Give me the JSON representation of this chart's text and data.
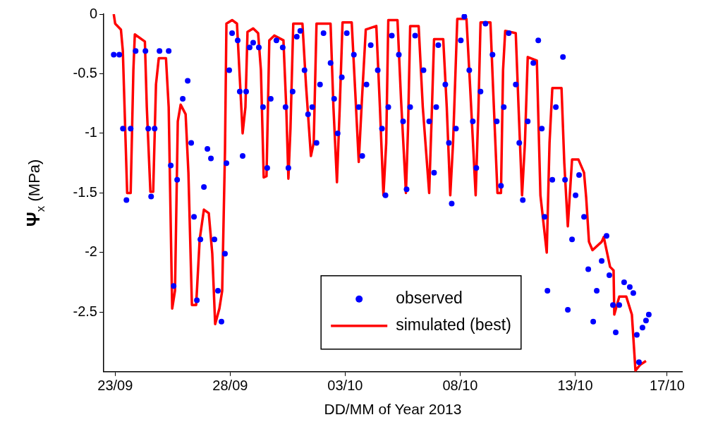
{
  "chart_data": {
    "type": "scatter",
    "xlabel": "DD/MM of Year 2013",
    "ylabel": "Ψ$_{x}$ (MPa)",
    "xlim": [
      "2013-09-22T12:00",
      "2013-10-17T15:30"
    ],
    "xticks": [
      {
        "value": "2013-09-23",
        "label": "23/09"
      },
      {
        "value": "2013-09-28",
        "label": "28/09"
      },
      {
        "value": "2013-10-03",
        "label": "03/10"
      },
      {
        "value": "2013-10-08",
        "label": "08/10"
      },
      {
        "value": "2013-10-13",
        "label": "13/10"
      },
      {
        "value": "2013-10-17",
        "label": "17/10"
      }
    ],
    "ylim": [
      -3,
      0
    ],
    "yticks": [
      0,
      -0.5,
      -1,
      -1.5,
      -2,
      -2.5
    ],
    "grid": false,
    "legend": "bottom",
    "series": [
      {
        "name": "observed",
        "marker": "circle",
        "color": "#0000ff",
        "x": [
          "2013-09-22T22:30",
          "2013-09-23T04:20",
          "2013-09-23T08:05",
          "2013-09-23T11:45",
          "2013-09-23T16:10",
          "2013-09-23T21:20",
          "2013-09-24T07:35",
          "2013-09-24T10:30",
          "2013-09-24T13:30",
          "2013-09-24T17:10",
          "2013-09-24T22:15",
          "2013-09-25T07:50",
          "2013-09-25T10:00",
          "2013-09-25T13:00",
          "2013-09-25T16:40",
          "2013-09-25T22:30",
          "2013-09-26T03:40",
          "2013-09-26T07:20",
          "2013-09-26T10:15",
          "2013-09-26T13:15",
          "2013-09-26T16:55",
          "2013-09-26T20:35",
          "2013-09-27T00:15",
          "2013-09-27T03:55",
          "2013-09-27T07:35",
          "2013-09-27T11:15",
          "2013-09-27T14:55",
          "2013-09-27T18:35",
          "2013-09-27T20:05",
          "2013-09-27T23:00",
          "2013-09-28T02:00",
          "2013-09-28T07:50",
          "2013-09-28T10:00",
          "2013-09-28T13:00",
          "2013-09-28T16:40",
          "2013-09-28T20:20",
          "2013-09-29T00:00",
          "2013-09-29T05:55",
          "2013-09-29T10:15",
          "2013-09-29T14:40",
          "2013-09-29T18:20",
          "2013-09-30T00:15",
          "2013-09-30T06:50",
          "2013-09-30T09:45",
          "2013-09-30T12:45",
          "2013-09-30T17:10",
          "2013-09-30T21:30",
          "2013-10-01T01:10",
          "2013-10-01T05:35",
          "2013-10-01T09:15",
          "2013-10-01T13:40",
          "2013-10-01T18:05",
          "2013-10-01T21:45",
          "2013-10-02T01:25",
          "2013-10-02T08:45",
          "2013-10-02T12:30",
          "2013-10-02T16:10",
          "2013-10-02T20:30",
          "2013-10-03T01:40",
          "2013-10-03T09:05",
          "2013-10-03T14:10",
          "2013-10-03T17:50",
          "2013-10-03T22:15",
          "2013-10-04T02:40",
          "2013-10-04T10:00",
          "2013-10-04T14:25",
          "2013-10-04T18:05",
          "2013-10-04T21:00",
          "2013-10-05T00:40",
          "2013-10-05T08:00",
          "2013-10-05T12:25",
          "2013-10-05T16:05",
          "2013-10-05T19:50",
          "2013-10-06T01:00",
          "2013-10-06T09:45",
          "2013-10-06T15:40",
          "2013-10-06T20:45",
          "2013-10-06T23:00",
          "2013-10-07T01:10",
          "2013-10-07T08:30",
          "2013-10-07T12:15",
          "2013-10-07T15:10",
          "2013-10-07T19:35",
          "2013-10-08T00:40",
          "2013-10-08T04:20",
          "2013-10-08T09:30",
          "2013-10-08T13:10",
          "2013-10-08T16:50",
          "2013-10-08T21:15",
          "2013-10-09T02:25",
          "2013-10-09T09:45",
          "2013-10-09T14:10",
          "2013-10-09T18:35",
          "2013-10-09T21:30",
          "2013-10-10T02:40",
          "2013-10-10T10:00",
          "2013-10-10T13:40",
          "2013-10-10T17:20",
          "2013-10-10T22:30",
          "2013-10-11T04:20",
          "2013-10-11T09:30",
          "2013-10-11T13:10",
          "2013-10-11T16:05",
          "2013-10-11T19:05",
          "2013-10-12T00:10",
          "2013-10-12T03:50",
          "2013-10-12T11:15",
          "2013-10-12T13:25",
          "2013-10-12T16:20",
          "2013-10-12T20:45",
          "2013-10-13T00:25",
          "2013-10-13T04:05",
          "2013-10-13T09:15",
          "2013-10-13T13:40",
          "2013-10-13T18:50",
          "2013-10-13T22:30",
          "2013-10-14T03:40",
          "2013-10-14T08:45",
          "2013-10-14T11:40",
          "2013-10-14T15:25",
          "2013-10-14T18:20",
          "2013-10-14T22:00",
          "2013-10-15T03:05",
          "2013-10-15T09:00",
          "2013-10-15T12:40",
          "2013-10-15T16:20",
          "2013-10-15T18:35",
          "2013-10-15T22:15",
          "2013-10-16T01:55",
          "2013-10-16T04:50"
        ],
        "values": [
          -0.34,
          -0.34,
          -0.96,
          -1.56,
          -0.96,
          -0.31,
          -0.31,
          -0.96,
          -1.53,
          -0.96,
          -0.31,
          -0.31,
          -1.27,
          -2.28,
          -1.39,
          -0.71,
          -0.56,
          -1.08,
          -1.7,
          -2.4,
          -1.89,
          -1.45,
          -1.13,
          -1.21,
          -1.89,
          -2.32,
          -2.58,
          -2.01,
          -1.25,
          -0.47,
          -0.16,
          -0.22,
          -0.65,
          -1.19,
          -0.65,
          -0.28,
          -0.24,
          -0.28,
          -0.78,
          -1.29,
          -0.71,
          -0.22,
          -0.28,
          -0.78,
          -1.29,
          -0.65,
          -0.19,
          -0.14,
          -0.47,
          -0.84,
          -0.78,
          -1.08,
          -0.59,
          -0.16,
          -0.41,
          -0.71,
          -1.0,
          -0.53,
          -0.16,
          -0.34,
          -0.78,
          -1.19,
          -0.59,
          -0.26,
          -0.47,
          -0.96,
          -1.52,
          -0.78,
          -0.18,
          -0.34,
          -0.9,
          -1.47,
          -0.78,
          -0.18,
          -0.47,
          -0.9,
          -1.33,
          -0.78,
          -0.26,
          -0.59,
          -1.08,
          -1.59,
          -0.96,
          -0.22,
          -0.02,
          -0.47,
          -0.9,
          -1.29,
          -0.65,
          -0.08,
          -0.34,
          -0.9,
          -1.44,
          -0.78,
          -0.16,
          -0.59,
          -1.08,
          -1.56,
          -0.9,
          -0.41,
          -0.22,
          -0.96,
          -1.7,
          -2.32,
          -1.39,
          -0.78,
          -0.36,
          -1.39,
          -2.48,
          -1.89,
          -1.52,
          -1.35,
          -1.7,
          -2.14,
          -2.58,
          -2.32,
          -2.07,
          -1.86,
          -2.19,
          -2.44,
          -2.67,
          -2.44,
          -2.25,
          -2.29,
          -2.34,
          -2.69,
          -2.92,
          -2.63,
          -2.57,
          -2.52
        ]
      },
      {
        "name": "simulated (best)",
        "type": "line",
        "color": "#ff0000",
        "x": [
          "2013-09-22T22:30",
          "2013-09-23T00:00",
          "2013-09-23T06:00",
          "2013-09-23T08:00",
          "2013-09-23T12:30",
          "2013-09-23T16:10",
          "2013-09-23T19:00",
          "2013-09-23T20:30",
          "2013-09-24T07:00",
          "2013-09-24T09:00",
          "2013-09-24T12:45",
          "2013-09-24T15:40",
          "2013-09-24T18:35",
          "2013-09-24T21:30",
          "2013-09-25T05:00",
          "2013-09-25T07:50",
          "2013-09-25T11:30",
          "2013-09-25T14:25",
          "2013-09-25T17:20",
          "2013-09-25T20:20",
          "2013-09-26T01:30",
          "2013-09-26T04:25",
          "2013-09-26T08:05",
          "2013-09-26T12:30",
          "2013-09-26T16:10",
          "2013-09-26T20:35",
          "2013-09-27T01:40",
          "2013-09-27T05:20",
          "2013-09-27T08:20",
          "2013-09-27T12:45",
          "2013-09-27T15:40",
          "2013-09-27T18:35",
          "2013-09-27T20:05",
          "2013-09-28T02:00",
          "2013-09-28T07:05",
          "2013-09-28T10:00",
          "2013-09-28T13:00",
          "2013-09-28T15:55",
          "2013-09-28T18:05",
          "2013-09-29T00:00",
          "2013-09-29T05:10",
          "2013-09-29T08:05",
          "2013-09-29T11:00",
          "2013-09-29T13:55",
          "2013-09-29T16:50",
          "2013-09-29T22:00",
          "2013-09-30T07:35",
          "2013-09-30T10:30",
          "2013-09-30T12:45",
          "2013-09-30T14:55",
          "2013-09-30T17:50",
          "2013-10-01T03:25",
          "2013-10-01T07:05",
          "2013-10-01T12:15",
          "2013-10-01T15:10",
          "2013-10-01T18:05",
          "2013-10-02T08:45",
          "2013-10-02T11:45",
          "2013-10-02T15:25",
          "2013-10-02T18:20",
          "2013-10-02T21:15",
          "2013-10-03T06:50",
          "2013-10-03T10:30",
          "2013-10-03T14:10",
          "2013-10-03T17:05",
          "2013-10-03T21:30",
          "2013-10-04T08:30",
          "2013-10-04T12:15",
          "2013-10-04T15:55",
          "2013-10-04T18:50",
          "2013-10-04T21:00",
          "2013-10-05T06:35",
          "2013-10-05T10:15",
          "2013-10-05T15:25",
          "2013-10-05T17:35",
          "2013-10-05T19:50",
          "2013-10-06T04:40",
          "2013-10-06T09:00",
          "2013-10-06T15:40",
          "2013-10-06T18:35",
          "2013-10-06T20:45",
          "2013-10-07T06:20",
          "2013-10-07T10:00",
          "2013-10-07T13:40",
          "2013-10-07T16:35",
          "2013-10-07T21:00",
          "2013-10-08T06:35",
          "2013-10-08T10:15",
          "2013-10-08T16:10",
          "2013-10-08T19:05",
          "2013-10-08T21:15",
          "2013-10-09T07:35",
          "2013-10-09T10:30",
          "2013-10-09T14:55",
          "2013-10-09T18:35",
          "2013-10-09T20:45",
          "2013-10-09T23:00",
          "2013-10-10T10:00",
          "2013-10-10T12:55",
          "2013-10-10T16:35",
          "2013-10-10T19:35",
          "2013-10-10T22:30",
          "2013-10-11T08:00",
          "2013-10-11T11:45",
          "2013-10-11T18:20",
          "2013-10-11T21:15",
          "2013-10-12T00:10",
          "2013-10-12T09:45",
          "2013-10-12T12:40",
          "2013-10-12T16:20",
          "2013-10-12T20:45",
          "2013-10-13T03:25",
          "2013-10-13T09:15",
          "2013-10-13T11:30",
          "2013-10-13T14:25",
          "2013-10-13T18:05",
          "2013-10-14T03:40",
          "2013-10-14T05:50",
          "2013-10-14T12:25",
          "2013-10-14T16:05",
          "2013-10-14T16:50",
          "2013-10-14T22:00",
          "2013-10-15T05:20",
          "2013-10-15T11:10",
          "2013-10-15T14:55",
          "2013-10-15T20:00",
          "2013-10-16T01:55"
        ],
        "values": [
          0.0,
          -0.08,
          -0.13,
          -0.31,
          -1.5,
          -1.5,
          -0.47,
          -0.17,
          -0.23,
          -0.78,
          -1.49,
          -1.49,
          -0.59,
          -0.37,
          -0.37,
          -0.78,
          -2.47,
          -2.32,
          -0.9,
          -0.76,
          -0.84,
          -1.33,
          -2.44,
          -2.44,
          -1.89,
          -1.64,
          -1.67,
          -2.01,
          -2.6,
          -2.47,
          -2.32,
          -1.15,
          -0.08,
          -0.05,
          -0.08,
          -0.53,
          -1.0,
          -0.78,
          -0.15,
          -0.12,
          -0.16,
          -0.47,
          -1.37,
          -1.36,
          -0.22,
          -0.18,
          -0.22,
          -0.78,
          -1.38,
          -0.96,
          -0.08,
          -0.08,
          -0.59,
          -1.19,
          -1.08,
          -0.08,
          -0.08,
          -0.78,
          -1.41,
          -0.78,
          -0.07,
          -0.07,
          -0.65,
          -1.24,
          -0.78,
          -0.13,
          -0.1,
          -0.78,
          -1.52,
          -1.08,
          -0.05,
          -0.05,
          -0.71,
          -1.5,
          -0.96,
          -0.1,
          -0.1,
          -0.78,
          -1.5,
          -0.78,
          -0.21,
          -0.21,
          -0.78,
          -1.52,
          -1.08,
          -0.04,
          -0.04,
          -0.59,
          -1.52,
          -0.78,
          -0.07,
          -0.07,
          -0.65,
          -1.5,
          -1.5,
          -0.47,
          -0.14,
          -0.16,
          -0.78,
          -1.52,
          -1.08,
          -0.36,
          -0.39,
          -1.52,
          -2.0,
          -1.08,
          -0.62,
          -0.62,
          -1.25,
          -1.78,
          -1.22,
          -1.22,
          -1.33,
          -1.54,
          -1.91,
          -1.98,
          -1.91,
          -1.87,
          -2.12,
          -2.15,
          -2.52,
          -2.37,
          -2.37,
          -2.52,
          -2.99,
          -2.94,
          -2.91
        ]
      }
    ]
  }
}
